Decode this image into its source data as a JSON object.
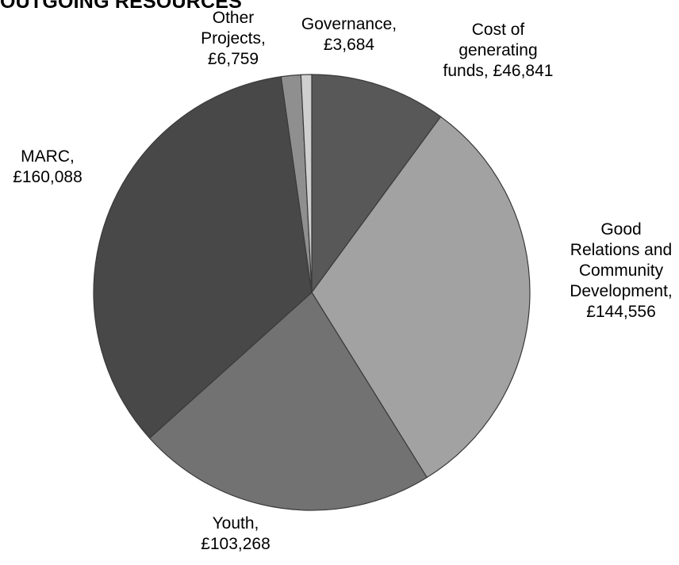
{
  "chart_data": {
    "type": "pie",
    "title": "OUTGOING RESOURCES",
    "slices": [
      {
        "label": "Cost of generating funds",
        "value": 46841,
        "display": "£46,841",
        "color": "#585858"
      },
      {
        "label": "Good Relations and Community Development",
        "value": 144556,
        "display": "£144,556",
        "color": "#a2a2a2"
      },
      {
        "label": "Youth",
        "value": 103268,
        "display": "£103,268",
        "color": "#727272"
      },
      {
        "label": "MARC",
        "value": 160088,
        "display": "£160,088",
        "color": "#484848"
      },
      {
        "label": "Other Projects",
        "value": 6759,
        "display": "£6,759",
        "color": "#8f8f8f"
      },
      {
        "label": "Governance",
        "value": 3684,
        "display": "£3,684",
        "color": "#cfcfcf"
      }
    ],
    "data_labels": [
      [
        "Cost of",
        "generating",
        "funds, £46,841"
      ],
      [
        "Good",
        "Relations and",
        "Community",
        "Development,",
        "£144,556"
      ],
      [
        "Youth,",
        "£103,268"
      ],
      [
        "MARC,",
        "£160,088"
      ],
      [
        "Other",
        "Projects,",
        "£6,759"
      ],
      [
        "Governance,",
        "£3,684"
      ]
    ],
    "start_angle_deg": 0,
    "direction": "clockwise",
    "legend": "none"
  }
}
